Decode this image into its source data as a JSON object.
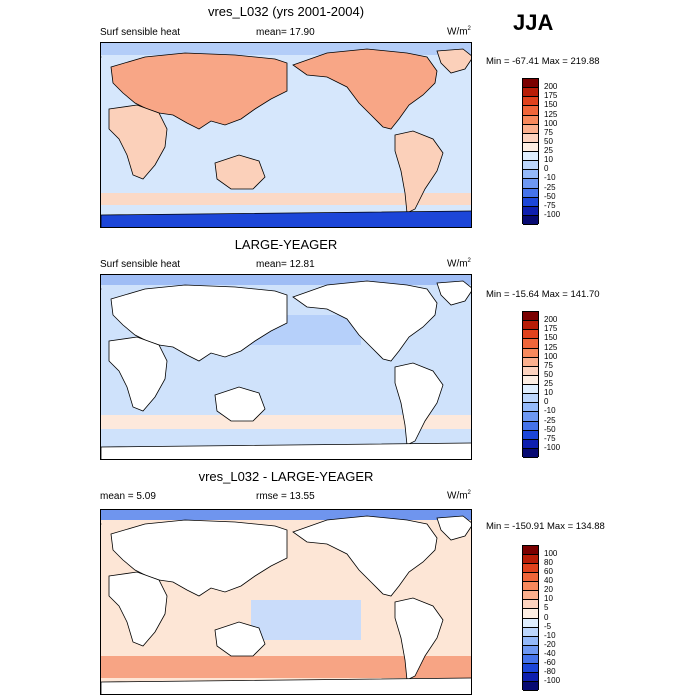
{
  "season": "JJA",
  "panels": [
    {
      "title": "vres_L032 (yrs 2001-2004)",
      "left_label": "Surf sensible heat",
      "center_label": "mean=  17.90",
      "right_prefix": "",
      "right_value": "",
      "units": "W/m",
      "units_exp": "2",
      "minmax": "Min = -67.41 Max = 219.88",
      "colorbar_labels": [
        "200",
        "175",
        "150",
        "125",
        "100",
        "75",
        "50",
        "25",
        "10",
        "0",
        "-10",
        "-25",
        "-50",
        "-75",
        "-100"
      ],
      "colorbar_colors": [
        "#7a0000",
        "#b81d07",
        "#e0421d",
        "#f0663a",
        "#f7895c",
        "#fbb08e",
        "#fdd3bf",
        "#fdeee3",
        "#dfeefe",
        "#bcd6fc",
        "#94b9f9",
        "#6e98f2",
        "#4573ea",
        "#1c46d8",
        "#0e1fae",
        "#070a72"
      ],
      "map_style": "control"
    },
    {
      "title": "LARGE-YEAGER",
      "left_label": "Surf sensible heat",
      "center_label": "mean=  12.81",
      "right_prefix": "",
      "right_value": "",
      "units": "W/m",
      "units_exp": "2",
      "minmax": "Min = -15.64 Max = 141.70",
      "colorbar_labels": [
        "200",
        "175",
        "150",
        "125",
        "100",
        "75",
        "50",
        "25",
        "10",
        "0",
        "-10",
        "-25",
        "-50",
        "-75",
        "-100"
      ],
      "colorbar_colors": [
        "#7a0000",
        "#b81d07",
        "#e0421d",
        "#f0663a",
        "#f7895c",
        "#fbb08e",
        "#fdd3bf",
        "#fdeee3",
        "#dfeefe",
        "#bcd6fc",
        "#94b9f9",
        "#6e98f2",
        "#4573ea",
        "#1c46d8",
        "#0e1fae",
        "#070a72"
      ],
      "map_style": "obs"
    },
    {
      "title": "vres_L032 - LARGE-YEAGER",
      "left_label": "mean =   5.09",
      "center_label": "",
      "right_prefix": "rmse = ",
      "right_value": "13.55",
      "units": "W/m",
      "units_exp": "2",
      "minmax": "Min = -150.91 Max = 134.88",
      "colorbar_labels": [
        "100",
        "80",
        "60",
        "40",
        "20",
        "10",
        "5",
        "0",
        "-5",
        "-10",
        "-20",
        "-40",
        "-60",
        "-80",
        "-100"
      ],
      "colorbar_colors": [
        "#7a0000",
        "#b81d07",
        "#e0421d",
        "#f0663a",
        "#f7895c",
        "#fbb08e",
        "#fdd3bf",
        "#fdeee3",
        "#dfeefe",
        "#bcd6fc",
        "#94b9f9",
        "#6e98f2",
        "#4573ea",
        "#1c46d8",
        "#0e1fae",
        "#070a72"
      ],
      "map_style": "diff"
    }
  ]
}
